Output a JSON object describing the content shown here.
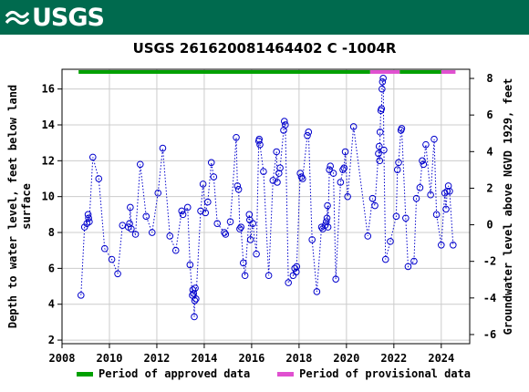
{
  "header": {
    "logo_text": "USGS",
    "logo_icon": "usgs-wave-icon"
  },
  "chart_data": {
    "type": "scatter",
    "title": "USGS 261620081464402 C  -1004R",
    "ylabel_left": "Depth to water level, feet below land surface",
    "ylabel_right": "Groundwater level above NGVD 1929, feet",
    "xlim": [
      2008,
      2025.2
    ],
    "ylim_left": [
      17.1,
      1.8
    ],
    "ylim_right": [
      -6.5,
      8.5
    ],
    "x_ticks": [
      2008,
      2010,
      2012,
      2014,
      2016,
      2018,
      2020,
      2022,
      2024
    ],
    "y_ticks_left": [
      2,
      4,
      6,
      8,
      10,
      12,
      14,
      16
    ],
    "y_ticks_right": [
      8,
      6,
      4,
      2,
      0,
      -2,
      -4,
      -6
    ],
    "colors": {
      "points": "#0000cc",
      "approved": "#00a000",
      "provisional": "#e050d0",
      "banner": "#006a4e"
    },
    "series": [
      {
        "points": [
          [
            2008.8,
            4.5
          ],
          [
            2008.95,
            8.3
          ],
          [
            2009.05,
            8.5
          ],
          [
            2009.1,
            9.0
          ],
          [
            2009.12,
            8.8
          ],
          [
            2009.15,
            8.6
          ],
          [
            2009.3,
            12.2
          ],
          [
            2009.55,
            11.0
          ],
          [
            2009.8,
            7.1
          ],
          [
            2010.1,
            6.5
          ],
          [
            2010.35,
            5.7
          ],
          [
            2010.55,
            8.4
          ],
          [
            2010.8,
            8.3
          ],
          [
            2010.85,
            8.5
          ],
          [
            2010.88,
            9.4
          ],
          [
            2010.92,
            8.2
          ],
          [
            2011.1,
            7.9
          ],
          [
            2011.3,
            11.8
          ],
          [
            2011.55,
            8.9
          ],
          [
            2011.8,
            8.0
          ],
          [
            2012.05,
            10.2
          ],
          [
            2012.25,
            12.7
          ],
          [
            2012.55,
            7.8
          ],
          [
            2012.8,
            7.0
          ],
          [
            2013.05,
            9.2
          ],
          [
            2013.1,
            9.0
          ],
          [
            2013.3,
            9.4
          ],
          [
            2013.4,
            6.2
          ],
          [
            2013.5,
            4.5
          ],
          [
            2013.52,
            4.8
          ],
          [
            2013.55,
            4.6
          ],
          [
            2013.58,
            3.3
          ],
          [
            2013.6,
            4.2
          ],
          [
            2013.62,
            4.9
          ],
          [
            2013.65,
            4.3
          ],
          [
            2013.85,
            9.2
          ],
          [
            2013.95,
            10.7
          ],
          [
            2014.05,
            9.1
          ],
          [
            2014.15,
            9.7
          ],
          [
            2014.3,
            11.9
          ],
          [
            2014.4,
            11.1
          ],
          [
            2014.55,
            8.5
          ],
          [
            2014.85,
            8.0
          ],
          [
            2014.9,
            7.9
          ],
          [
            2015.1,
            8.6
          ],
          [
            2015.35,
            13.3
          ],
          [
            2015.4,
            10.6
          ],
          [
            2015.45,
            10.4
          ],
          [
            2015.5,
            8.2
          ],
          [
            2015.55,
            8.3
          ],
          [
            2015.65,
            6.3
          ],
          [
            2015.72,
            5.6
          ],
          [
            2015.9,
            9.0
          ],
          [
            2015.92,
            8.7
          ],
          [
            2015.95,
            7.6
          ],
          [
            2016.05,
            8.5
          ],
          [
            2016.2,
            6.8
          ],
          [
            2016.3,
            13.1
          ],
          [
            2016.32,
            13.2
          ],
          [
            2016.35,
            12.9
          ],
          [
            2016.5,
            11.4
          ],
          [
            2016.72,
            5.6
          ],
          [
            2016.9,
            10.9
          ],
          [
            2017.05,
            12.5
          ],
          [
            2017.08,
            10.8
          ],
          [
            2017.15,
            11.3
          ],
          [
            2017.2,
            11.6
          ],
          [
            2017.35,
            13.7
          ],
          [
            2017.38,
            14.2
          ],
          [
            2017.42,
            14.0
          ],
          [
            2017.55,
            5.2
          ],
          [
            2017.75,
            5.6
          ],
          [
            2017.82,
            6.0
          ],
          [
            2017.88,
            5.8
          ],
          [
            2017.9,
            6.1
          ],
          [
            2018.05,
            11.3
          ],
          [
            2018.1,
            11.1
          ],
          [
            2018.15,
            11.0
          ],
          [
            2018.35,
            13.4
          ],
          [
            2018.4,
            13.6
          ],
          [
            2018.55,
            7.6
          ],
          [
            2018.75,
            4.7
          ],
          [
            2018.95,
            8.3
          ],
          [
            2019.0,
            8.2
          ],
          [
            2019.1,
            8.4
          ],
          [
            2019.15,
            8.6
          ],
          [
            2019.18,
            8.8
          ],
          [
            2019.2,
            9.5
          ],
          [
            2019.22,
            8.3
          ],
          [
            2019.28,
            11.5
          ],
          [
            2019.32,
            11.7
          ],
          [
            2019.45,
            11.3
          ],
          [
            2019.55,
            5.4
          ],
          [
            2019.75,
            10.8
          ],
          [
            2019.85,
            11.5
          ],
          [
            2019.9,
            11.6
          ],
          [
            2019.95,
            12.5
          ],
          [
            2020.05,
            10.0
          ],
          [
            2020.3,
            13.9
          ],
          [
            2020.9,
            7.8
          ],
          [
            2021.1,
            9.9
          ],
          [
            2021.2,
            9.5
          ],
          [
            2021.35,
            12.4
          ],
          [
            2021.38,
            12.8
          ],
          [
            2021.4,
            12.0
          ],
          [
            2021.42,
            13.6
          ],
          [
            2021.45,
            14.8
          ],
          [
            2021.48,
            14.9
          ],
          [
            2021.5,
            16.0
          ],
          [
            2021.52,
            16.4
          ],
          [
            2021.55,
            16.6
          ],
          [
            2021.58,
            12.6
          ],
          [
            2021.65,
            6.5
          ],
          [
            2021.85,
            7.5
          ],
          [
            2022.1,
            8.9
          ],
          [
            2022.15,
            11.5
          ],
          [
            2022.2,
            11.9
          ],
          [
            2022.3,
            13.7
          ],
          [
            2022.33,
            13.8
          ],
          [
            2022.5,
            8.8
          ],
          [
            2022.6,
            6.1
          ],
          [
            2022.85,
            6.4
          ],
          [
            2022.95,
            9.9
          ],
          [
            2023.1,
            10.5
          ],
          [
            2023.2,
            12.0
          ],
          [
            2023.25,
            11.8
          ],
          [
            2023.35,
            12.9
          ],
          [
            2023.55,
            10.1
          ],
          [
            2023.7,
            13.2
          ],
          [
            2023.8,
            9.0
          ],
          [
            2024.0,
            7.3
          ],
          [
            2024.15,
            10.2
          ],
          [
            2024.2,
            9.3
          ],
          [
            2024.25,
            10.3
          ],
          [
            2024.3,
            10.6
          ],
          [
            2024.35,
            10.3
          ],
          [
            2024.5,
            7.3
          ]
        ]
      }
    ],
    "periods": [
      {
        "label": "Period of approved data",
        "start": 2008.7,
        "end": 2021.0,
        "color": "#00a000"
      },
      {
        "label": "Period of provisional data",
        "start": 2021.0,
        "end": 2022.25,
        "color": "#e050d0"
      },
      {
        "start": 2022.25,
        "end": 2024.0,
        "color": "#00a000"
      },
      {
        "start": 2024.0,
        "end": 2024.6,
        "color": "#e050d0"
      }
    ],
    "legend": {
      "approved_label": "Period of approved data",
      "provisional_label": "Period of provisional data"
    }
  }
}
